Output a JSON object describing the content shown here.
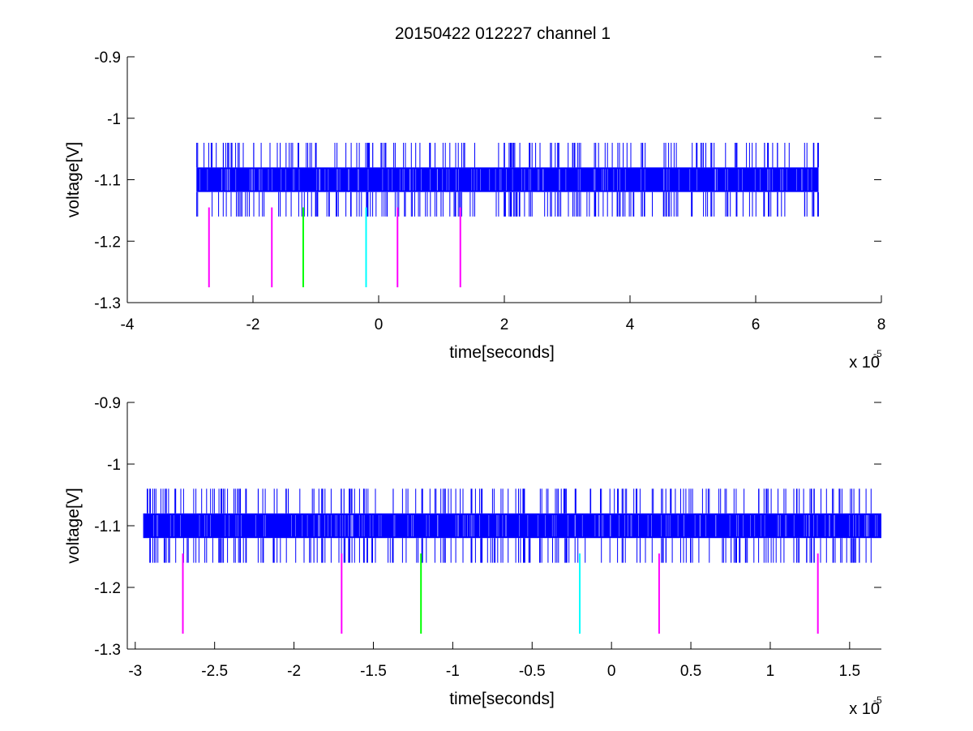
{
  "figure_title": "20150422 012227 channel 1",
  "chart_data": [
    {
      "type": "line",
      "title": "20150422 012227 channel 1",
      "xlabel": "time[seconds]",
      "ylabel": "voltage[V]",
      "x_multiplier_label": "x 10",
      "x_multiplier_exp": "-5",
      "xlim": [
        -4,
        8
      ],
      "ylim": [
        -1.3,
        -0.9
      ],
      "xticks": [
        "-4",
        "-2",
        "0",
        "2",
        "4",
        "6",
        "8"
      ],
      "xtick_values": [
        -4,
        -2,
        0,
        2,
        4,
        6,
        8
      ],
      "yticks": [
        "-0.9",
        "-1",
        "-1.1",
        "-1.2",
        "-1.3"
      ],
      "ytick_values": [
        -0.9,
        -1.0,
        -1.1,
        -1.2,
        -1.3
      ],
      "grid": false,
      "series": [
        {
          "color": "#0000ff",
          "x_start": -2.9,
          "x_end": 7.0,
          "band": [
            -1.12,
            -1.08
          ],
          "spike_high": -1.04,
          "spike_low": -1.16
        }
      ],
      "markers": [
        {
          "x": -2.7,
          "color": "#ff00ff",
          "y_top": -1.145,
          "y_bottom": -1.275
        },
        {
          "x": -1.7,
          "color": "#ff00ff",
          "y_top": -1.145,
          "y_bottom": -1.275
        },
        {
          "x": -1.2,
          "color": "#00ff00",
          "y_top": -1.145,
          "y_bottom": -1.275
        },
        {
          "x": -0.2,
          "color": "#00ffff",
          "y_top": -1.145,
          "y_bottom": -1.275
        },
        {
          "x": 0.3,
          "color": "#ff00ff",
          "y_top": -1.145,
          "y_bottom": -1.275
        },
        {
          "x": 1.3,
          "color": "#ff00ff",
          "y_top": -1.145,
          "y_bottom": -1.275
        }
      ]
    },
    {
      "type": "line",
      "title": "",
      "xlabel": "time[seconds]",
      "ylabel": "voltage[V]",
      "x_multiplier_label": "x 10",
      "x_multiplier_exp": "-5",
      "xlim": [
        -3.05,
        1.7
      ],
      "ylim": [
        -1.3,
        -0.9
      ],
      "xticks": [
        "-3",
        "-2.5",
        "-2",
        "-1.5",
        "-1",
        "-0.5",
        "0",
        "0.5",
        "1",
        "1.5"
      ],
      "xtick_values": [
        -3,
        -2.5,
        -2,
        -1.5,
        -1,
        -0.5,
        0,
        0.5,
        1,
        1.5
      ],
      "yticks": [
        "-0.9",
        "-1",
        "-1.1",
        "-1.2",
        "-1.3"
      ],
      "ytick_values": [
        -0.9,
        -1.0,
        -1.1,
        -1.2,
        -1.3
      ],
      "grid": false,
      "series": [
        {
          "color": "#0000ff",
          "x_start": -2.95,
          "x_end": 1.7,
          "band": [
            -1.12,
            -1.08
          ],
          "spike_high": -1.04,
          "spike_low": -1.16
        }
      ],
      "markers": [
        {
          "x": -2.7,
          "color": "#ff00ff",
          "y_top": -1.145,
          "y_bottom": -1.275
        },
        {
          "x": -1.7,
          "color": "#ff00ff",
          "y_top": -1.145,
          "y_bottom": -1.275
        },
        {
          "x": -1.2,
          "color": "#00ff00",
          "y_top": -1.145,
          "y_bottom": -1.275
        },
        {
          "x": -0.2,
          "color": "#00ffff",
          "y_top": -1.145,
          "y_bottom": -1.275
        },
        {
          "x": 0.3,
          "color": "#ff00ff",
          "y_top": -1.145,
          "y_bottom": -1.275
        },
        {
          "x": 1.3,
          "color": "#ff00ff",
          "y_top": -1.145,
          "y_bottom": -1.275
        }
      ]
    }
  ]
}
